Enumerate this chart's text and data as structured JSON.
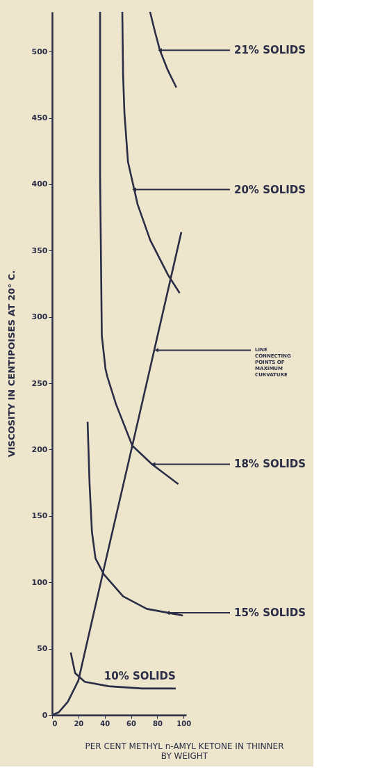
{
  "chart_data": {
    "type": "line",
    "xlabel": "PER CENT METHYL n-AMYL KETONE IN THINNER\nBY WEIGHT",
    "ylabel": "VISCOSITY  IN  CENTIPOISES  AT  20° C.",
    "xlim": [
      0,
      102
    ],
    "ylim": [
      0,
      530
    ],
    "xticks": [
      0,
      20,
      40,
      60,
      80,
      100
    ],
    "yticks": [
      0,
      50,
      100,
      150,
      200,
      250,
      300,
      350,
      400,
      450,
      500
    ],
    "grid": false,
    "marker": "none",
    "line_style": "solid",
    "series": [
      {
        "color": "#2a2d45",
        "x": [
          74.5,
          78,
          82,
          88,
          94.5
        ],
        "values": [
          530,
          516,
          501,
          486,
          473
        ]
      },
      {
        "color": "#2a2d45",
        "x": [
          53.4,
          54,
          55,
          57.7,
          65,
          74.6,
          88,
          97
        ],
        "values": [
          530,
          482,
          454,
          417,
          385,
          358,
          332,
          318
        ]
      },
      {
        "color": "#2a2d45",
        "x": [
          36.5,
          36.5,
          37.8,
          40.6,
          42,
          48.7,
          61,
          76,
          96
        ],
        "values": [
          530,
          407,
          286,
          261,
          255,
          234,
          203,
          189,
          174
        ]
      },
      {
        "color": "#2a2d45",
        "x": [
          27,
          28.5,
          30.3,
          33,
          39.4,
          54,
          72,
          99.5
        ],
        "values": [
          221,
          174,
          138,
          118,
          106,
          89.5,
          80,
          75
        ]
      },
      {
        "name": "10% SOLIDS",
        "color": "#2a2d45",
        "x": [
          14.2,
          17.5,
          24.8,
          43,
          68.6,
          94
        ],
        "values": [
          47,
          31.6,
          25,
          21.7,
          20,
          20
        ]
      },
      {
        "color": "#2a2d45",
        "x": [
          0,
          5,
          12,
          20,
          40,
          61,
          98.3
        ],
        "values": [
          0,
          2,
          10,
          26,
          113,
          203,
          364
        ]
      }
    ],
    "annotations": [
      {
        "text": "21% SOLIDS",
        "x": 82,
        "y": 501
      },
      {
        "text": "20% SOLIDS",
        "x": 62.5,
        "y": 396
      },
      {
        "text": "LINE\nCONNECTING\nPOINTS OF\nMAXIMUM\nCURVATURE",
        "x": 79.4,
        "y": 275
      },
      {
        "text": "18% SOLIDS",
        "x": 77,
        "y": 189
      },
      {
        "text": "15% SOLIDS",
        "x": 88,
        "y": 77
      }
    ]
  }
}
